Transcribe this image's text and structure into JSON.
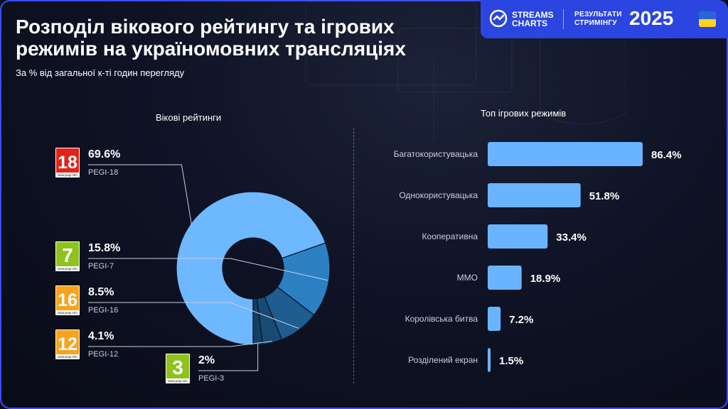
{
  "header": {
    "title": "Розподіл вікового рейтингу та ігрових режимів на україномовних трансляціях",
    "subtitle": "За % від загальної к-ті годин перегляду",
    "brand_line1": "STREAMS",
    "brand_line2": "CHARTS",
    "results_line1": "РЕЗУЛЬТАТИ",
    "results_line2": "СТРИМІНГУ",
    "year": "2025"
  },
  "colors": {
    "accent": "#2b45e0",
    "bar": "#6ab4ff",
    "pegi_red": "#e2231a",
    "pegi_green": "#8ec21f",
    "pegi_orange": "#f7a31c"
  },
  "chart_data": [
    {
      "type": "pie",
      "title": "Вікові рейтинги",
      "labels": [
        "PEGI-18",
        "PEGI-7",
        "PEGI-16",
        "PEGI-12",
        "PEGI-3"
      ],
      "values": [
        69.6,
        15.8,
        8.5,
        4.1,
        2
      ],
      "value_labels": [
        "69.6%",
        "15.8%",
        "8.5%",
        "4.1%",
        "2%"
      ],
      "badge_numbers": [
        "18",
        "7",
        "16",
        "12",
        "3"
      ],
      "badge_caption": "www.pegi.info",
      "colors": [
        "#6db8ff",
        "#2b80c4",
        "#1f5c8f",
        "#194a74",
        "#153e63"
      ],
      "legend": "left"
    },
    {
      "type": "bar",
      "orientation": "horizontal",
      "title": "Топ ігрових режимів",
      "categories": [
        "Багатокористувацька",
        "Однокористувацька",
        "Кооперативна",
        "MMO",
        "Королівська битва",
        "Розділений екран"
      ],
      "values": [
        86.4,
        51.8,
        33.4,
        18.9,
        7.2,
        1.5
      ],
      "value_labels": [
        "86.4%",
        "51.8%",
        "33.4%",
        "18.9%",
        "7.2%",
        "1.5%"
      ]
    }
  ]
}
